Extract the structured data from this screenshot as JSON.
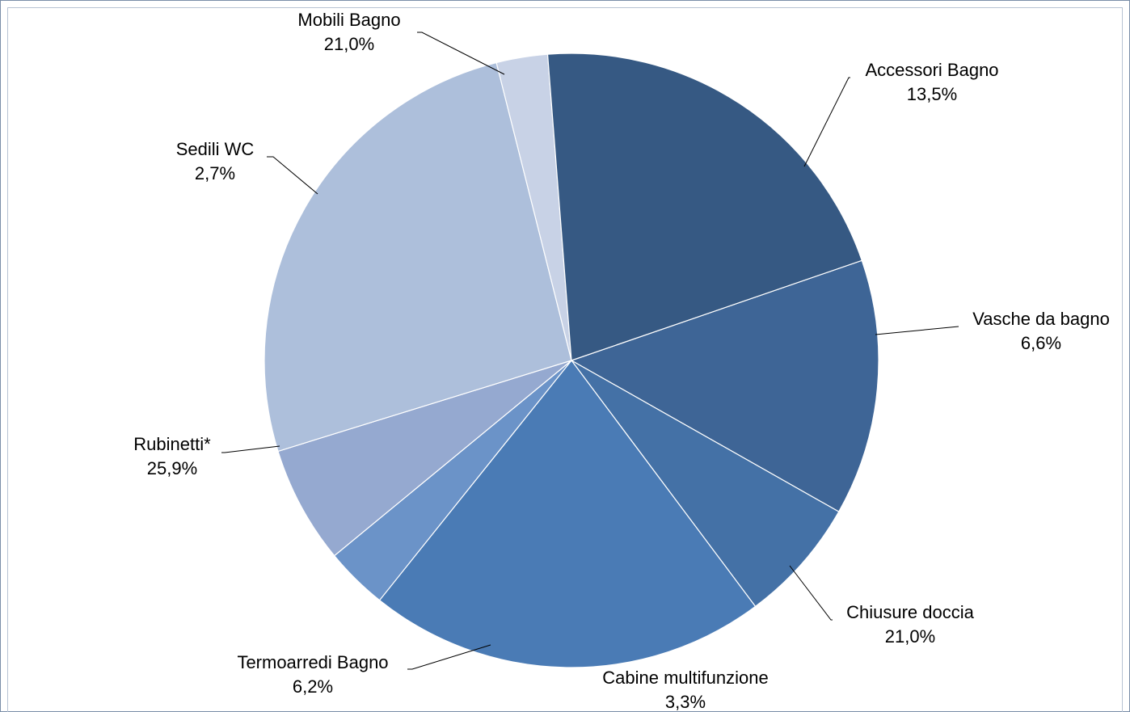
{
  "chart_data": {
    "type": "pie",
    "title": "",
    "value_unit": "%",
    "slices": [
      {
        "label": "Accessori  Bagno",
        "value": 13.5,
        "display": "13,5%",
        "color": "#3e6596"
      },
      {
        "label": "Vasche da bagno",
        "value": 6.6,
        "display": "6,6%",
        "color": "#4471a6"
      },
      {
        "label": "Chiusure  doccia",
        "value": 21.0,
        "display": "21,0%",
        "color": "#4a7bb5"
      },
      {
        "label": "Cabine multifunzione",
        "value": 3.3,
        "display": "3,3%",
        "color": "#6b93c8"
      },
      {
        "label": "Termoarredi Bagno",
        "value": 6.2,
        "display": "6,2%",
        "color": "#95a9d0"
      },
      {
        "label": "Rubinetti*",
        "value": 25.9,
        "display": "25,9%",
        "color": "#adbfdb"
      },
      {
        "label": "Sedili  WC",
        "value": 2.7,
        "display": "2,7%",
        "color": "#c8d2e6"
      },
      {
        "label": "Mobili  Bagno",
        "value": 21.0,
        "display": "21,0%",
        "color": "#365983"
      }
    ],
    "legend": "none",
    "labels": "outside-with-leader-lines"
  }
}
